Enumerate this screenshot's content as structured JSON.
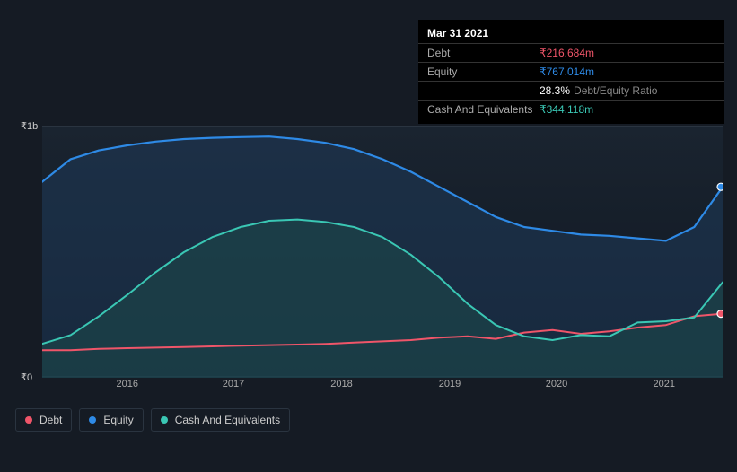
{
  "tooltip": {
    "title": "Mar 31 2021",
    "rows": [
      {
        "label": "Debt",
        "value": "₹216.684m",
        "color": "#ef5569"
      },
      {
        "label": "Equity",
        "value": "₹767.014m",
        "color": "#2e8ae6"
      },
      {
        "label": "",
        "value": "28.3%",
        "suffix": "Debt/Equity Ratio",
        "color": "#ffffff"
      },
      {
        "label": "Cash And Equivalents",
        "value": "₹344.118m",
        "color": "#3ac7b4"
      }
    ]
  },
  "chart": {
    "type": "area",
    "background": "#151b24",
    "plot_bg_top": "#1a2430",
    "plot_bg_bottom": "#0f1620",
    "grid_color": "#2a3440",
    "y_labels": [
      "₹1b",
      "₹0"
    ],
    "x_labels": [
      "2016",
      "2017",
      "2018",
      "2019",
      "2020",
      "2021"
    ],
    "x_positions_pct": [
      12.5,
      28.1,
      44.0,
      59.9,
      75.6,
      91.4
    ],
    "ylim": [
      0,
      1000
    ],
    "series": {
      "debt": {
        "name": "Debt",
        "color": "#ef5569",
        "fill_opacity": 0,
        "stroke_width": 2,
        "values": [
          110,
          110,
          115,
          118,
          120,
          122,
          125,
          128,
          130,
          132,
          135,
          140,
          145,
          150,
          160,
          165,
          155,
          180,
          190,
          175,
          185,
          200,
          210,
          245,
          255
        ],
        "marker_end": true
      },
      "equity": {
        "name": "Equity",
        "color": "#2e8ae6",
        "fill_color": "#1f3a5a",
        "fill_opacity": 0.55,
        "stroke_width": 2.2,
        "values": [
          780,
          870,
          905,
          925,
          940,
          950,
          955,
          958,
          960,
          950,
          935,
          910,
          870,
          820,
          760,
          700,
          640,
          600,
          585,
          570,
          565,
          555,
          545,
          600,
          760
        ],
        "marker_end": true
      },
      "cash": {
        "name": "Cash And Equivalents",
        "color": "#3ac7b4",
        "fill_color": "#1e4a4a",
        "fill_opacity": 0.55,
        "stroke_width": 2,
        "values": [
          135,
          170,
          245,
          330,
          420,
          500,
          560,
          600,
          625,
          630,
          620,
          600,
          560,
          490,
          400,
          295,
          210,
          165,
          150,
          170,
          165,
          220,
          225,
          240,
          380
        ],
        "marker_end": false
      }
    }
  },
  "legend": {
    "items": [
      {
        "label": "Debt",
        "color": "#ef5569"
      },
      {
        "label": "Equity",
        "color": "#2e8ae6"
      },
      {
        "label": "Cash And Equivalents",
        "color": "#3ac7b4"
      }
    ]
  }
}
